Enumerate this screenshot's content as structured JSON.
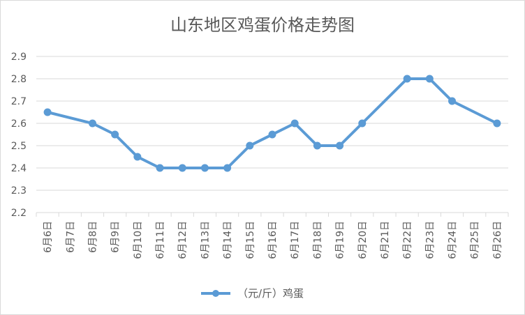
{
  "chart_data": {
    "type": "line",
    "title": "山东地区鸡蛋价格走势图",
    "xlabel": "",
    "ylabel": "",
    "ylim": [
      2.2,
      2.9
    ],
    "y_ticks": [
      "2.2",
      "2.3",
      "2.4",
      "2.5",
      "2.6",
      "2.7",
      "2.8",
      "2.9"
    ],
    "grid": true,
    "legend_position": "bottom",
    "categories": [
      "6月6日",
      "6月7日",
      "6月8日",
      "6月9日",
      "6月10日",
      "6月11日",
      "6月12日",
      "6月13日",
      "6月14日",
      "6月15日",
      "6月16日",
      "6月17日",
      "6月18日",
      "6月19日",
      "6月20日",
      "6月21日",
      "6月22日",
      "6月23日",
      "6月24日",
      "6月25日",
      "6月26日"
    ],
    "series": [
      {
        "name": "（元/斤）鸡蛋",
        "color": "#5b9bd5",
        "points": [
          {
            "x": "6月6日",
            "y": 2.65
          },
          {
            "x": "6月8日",
            "y": 2.6
          },
          {
            "x": "6月9日",
            "y": 2.55
          },
          {
            "x": "6月10日",
            "y": 2.45
          },
          {
            "x": "6月11日",
            "y": 2.4
          },
          {
            "x": "6月12日",
            "y": 2.4
          },
          {
            "x": "6月13日",
            "y": 2.4
          },
          {
            "x": "6月14日",
            "y": 2.4
          },
          {
            "x": "6月15日",
            "y": 2.5
          },
          {
            "x": "6月16日",
            "y": 2.55
          },
          {
            "x": "6月17日",
            "y": 2.6
          },
          {
            "x": "6月18日",
            "y": 2.5
          },
          {
            "x": "6月19日",
            "y": 2.5
          },
          {
            "x": "6月20日",
            "y": 2.6
          },
          {
            "x": "6月22日",
            "y": 2.8
          },
          {
            "x": "6月23日",
            "y": 2.8
          },
          {
            "x": "6月24日",
            "y": 2.7
          },
          {
            "x": "6月26日",
            "y": 2.6
          }
        ]
      }
    ]
  }
}
